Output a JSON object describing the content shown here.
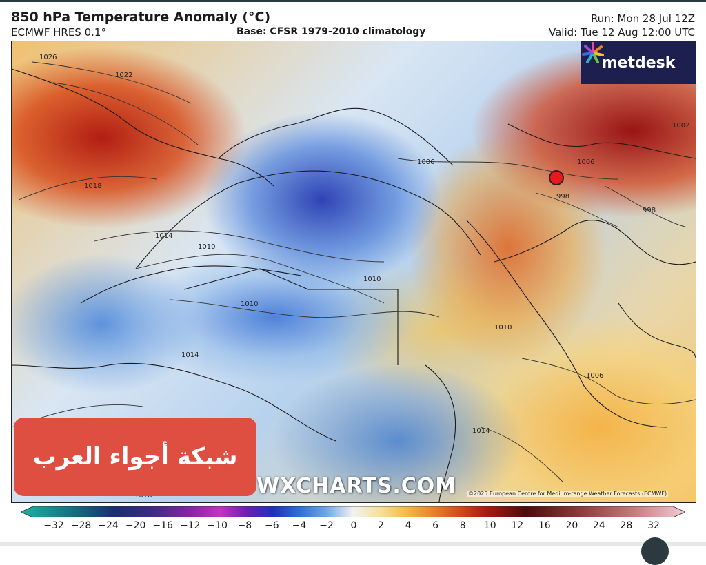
{
  "header": {
    "title": "850 hPa Temperature Anomaly (°C)",
    "model": "ECMWF HRES 0.1°",
    "base": "Base: CFSR 1979-2010 climatology",
    "run": "Run: Mon 28 Jul 12Z",
    "valid": "Valid: Tue 12 Aug 12:00 UTC"
  },
  "logo": {
    "text": "metdesk",
    "icon": "metdesk-burst-icon",
    "bg": "#1d1f4f"
  },
  "watermark": "WXCHARTS.COM",
  "credit": "©2025 European Centre for Medium-range Weather Forecasts (ECMWF)",
  "badge": {
    "text": "شبكة أجواء العرب",
    "color": "#de4f42"
  },
  "isobars": [
    "1026",
    "1022",
    "1018",
    "1014",
    "1010",
    "1010",
    "1010",
    "1010",
    "1006",
    "1006",
    "1006",
    "1002",
    "998",
    "998",
    "1014",
    "1014",
    "1018"
  ],
  "colorbar": {
    "ticks": [
      "−32",
      "−28",
      "−24",
      "−20",
      "−16",
      "−12",
      "−10",
      "−8",
      "−6",
      "−4",
      "−2",
      "0",
      "2",
      "4",
      "6",
      "8",
      "10",
      "12",
      "16",
      "20",
      "24",
      "28",
      "32"
    ],
    "colors": [
      "#1ab5a3",
      "#17647a",
      "#1a2f6e",
      "#3f2a82",
      "#8b26a6",
      "#c333c2",
      "#6a1fb0",
      "#1f2fbf",
      "#2f6fd6",
      "#71a6e4",
      "#cfe2f3",
      "#f2f2f2",
      "#f6e0a0",
      "#f3bb46",
      "#e8832a",
      "#d64a1c",
      "#ab1a12",
      "#6e0d0d",
      "#4a0c0c",
      "#8a3a3a",
      "#c27a7a",
      "#e3a8b4",
      "#f4cbd8"
    ]
  },
  "marker": {
    "name": "location-marker",
    "color": "#e8181b"
  }
}
